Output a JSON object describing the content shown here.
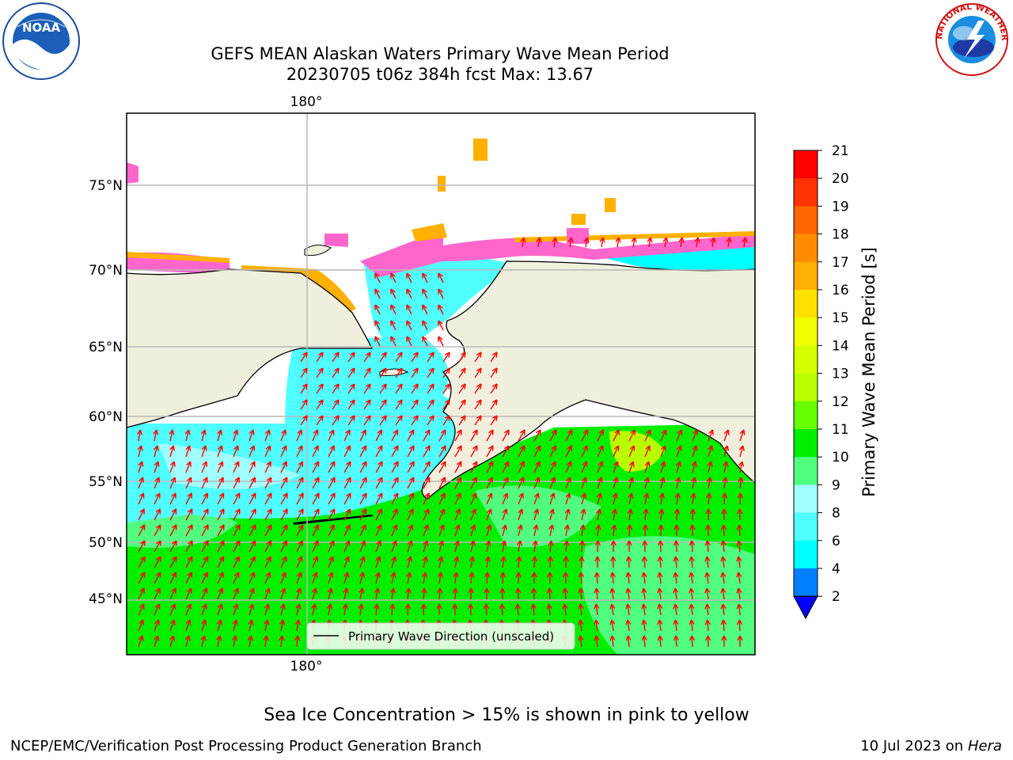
{
  "title": {
    "line1": "GEFS MEAN Alaskan Waters Primary Wave Mean Period",
    "line2": "20230705 t06z 384h fcst   Max: 13.67"
  },
  "map": {
    "lon_top_label": "180°",
    "lon_bottom_label": "180°",
    "lat_labels": [
      "75°N",
      "70°N",
      "65°N",
      "60°N",
      "55°N",
      "50°N",
      "45°N"
    ],
    "legend_text": "Primary Wave Direction (unscaled)"
  },
  "colorbar": {
    "label": "Primary Wave Mean Period [s]",
    "ticks": [
      "21",
      "20",
      "19",
      "18",
      "17",
      "16",
      "15",
      "14",
      "13",
      "12",
      "11",
      "10",
      "9",
      "8",
      "6",
      "4",
      "2"
    ],
    "colors": [
      "#ff0000",
      "#ff3300",
      "#ff6600",
      "#ff8c00",
      "#ffb000",
      "#ffe000",
      "#f0ff00",
      "#d6ff00",
      "#b8ff00",
      "#66ff00",
      "#00ee00",
      "#50ff80",
      "#a0ffff",
      "#50ffff",
      "#00ffff",
      "#0080ff"
    ],
    "extend_color": "#0000ff"
  },
  "colors": {
    "land": "#f0eedc",
    "ocean_green": "#00ee00",
    "ocean_cyan": "#50ffff",
    "ice_pink": "#ff66cc",
    "arrow": "#ff0000"
  },
  "logos": {
    "noaa_text": "NOAA",
    "nws_text": "NATIONAL WEATHER SERVICE"
  },
  "caption": "Sea Ice Concentration > 15% is shown in pink to yellow",
  "footer": {
    "left": "NCEP/EMC/Verification Post Processing Product Generation Branch",
    "right_date": "10 Jul 2023 on ",
    "right_system": "Hera"
  }
}
